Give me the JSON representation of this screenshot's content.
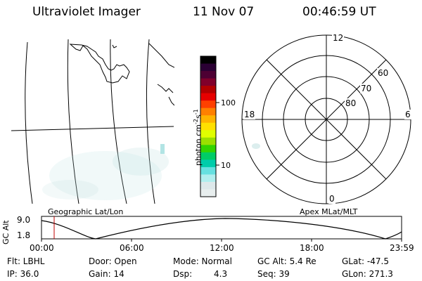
{
  "header": {
    "instrument": "Ultraviolet Imager",
    "date": "11 Nov 07",
    "time": "00:46:59 UT"
  },
  "colorbar": {
    "unit_label": "photon cm",
    "unit_exp1": "-2",
    "unit_mid": "s",
    "unit_exp2": "-1",
    "tick_100": "100",
    "tick_10": "10",
    "colors": [
      "#000000",
      "#2a0033",
      "#4d0033",
      "#80002b",
      "#b30000",
      "#e60000",
      "#ff4000",
      "#ff8000",
      "#ffb300",
      "#ffe000",
      "#e0ff00",
      "#9be000",
      "#33d400",
      "#00cc66",
      "#00ccaa",
      "#66e0e0",
      "#b0eeee",
      "#dde8ea",
      "#e8eeee"
    ]
  },
  "polar": {
    "mlt_top": "12",
    "mlt_left": "18",
    "mlt_right": "6",
    "mlt_bottom": "0",
    "lat_60": "60",
    "lat_70": "70",
    "lat_80": "80"
  },
  "map_titles": {
    "left": "Geographic Lat/Lon",
    "right": "Apex MLat/MLT"
  },
  "altitude_plot": {
    "ylabel": "GC Alt",
    "ymax": "9.0",
    "ymin": "1.8",
    "xticks": [
      "00:00",
      "06:00",
      "12:00",
      "18:00",
      "23:59"
    ],
    "marker_color": "#c00000"
  },
  "footer": {
    "flt": "Flt: LBHL",
    "ip": "IP: 36.0",
    "door": "Door: Open",
    "gain": "Gain: 14",
    "mode": "Mode: Normal",
    "dsp_label": "Dsp:",
    "dsp_value": "4.3",
    "gc_alt": "GC Alt: 5.4 Re",
    "seq": "Seq: 39",
    "glat": "GLat: -47.5",
    "glon": "GLon: 271.3"
  }
}
